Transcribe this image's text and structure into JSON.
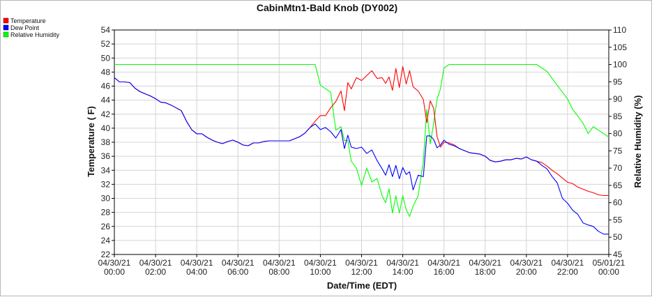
{
  "chart_data": {
    "type": "line",
    "title": "CabinMtn1-Bald Knob (DY002)",
    "xlabel": "Date/Time (EDT)",
    "ylabel": "Temperature ( F)",
    "y2label": "Relative Humidity (%)",
    "xlim": [
      "04/30/21 00:00",
      "05/01/21 00:00"
    ],
    "ylim": [
      22,
      54
    ],
    "y2lim": [
      45,
      110
    ],
    "grid": true,
    "legend_position": "top-left",
    "x_ticks": [
      "04/30/21 00:00",
      "04/30/21 02:00",
      "04/30/21 04:00",
      "04/30/21 06:00",
      "04/30/21 08:00",
      "04/30/21 10:00",
      "04/30/21 12:00",
      "04/30/21 14:00",
      "04/30/21 16:00",
      "04/30/21 18:00",
      "04/30/21 20:00",
      "04/30/21 22:00",
      "05/01/21 00:00"
    ],
    "y_ticks": [
      22,
      24,
      26,
      28,
      30,
      32,
      34,
      36,
      38,
      40,
      42,
      44,
      46,
      48,
      50,
      52,
      54
    ],
    "y2_ticks": [
      45,
      50,
      55,
      60,
      65,
      70,
      75,
      80,
      85,
      90,
      95,
      100,
      105,
      110
    ],
    "series": [
      {
        "name": "Temperature",
        "color": "#ff0000",
        "axis": "left",
        "x": [
          "04/30/21 00:00",
          "04/30/21 00:15",
          "04/30/21 00:30",
          "04/30/21 00:45",
          "04/30/21 01:00",
          "04/30/21 01:15",
          "04/30/21 01:30",
          "04/30/21 01:45",
          "04/30/21 02:00",
          "04/30/21 02:15",
          "04/30/21 02:30",
          "04/30/21 02:45",
          "04/30/21 03:00",
          "04/30/21 03:15",
          "04/30/21 03:30",
          "04/30/21 03:45",
          "04/30/21 04:00",
          "04/30/21 04:15",
          "04/30/21 04:30",
          "04/30/21 04:45",
          "04/30/21 05:00",
          "04/30/21 05:15",
          "04/30/21 05:30",
          "04/30/21 05:45",
          "04/30/21 06:00",
          "04/30/21 06:15",
          "04/30/21 06:30",
          "04/30/21 06:45",
          "04/30/21 07:00",
          "04/30/21 07:15",
          "04/30/21 07:30",
          "04/30/21 07:45",
          "04/30/21 08:00",
          "04/30/21 08:15",
          "04/30/21 08:30",
          "04/30/21 08:45",
          "04/30/21 09:00",
          "04/30/21 09:15",
          "04/30/21 09:30",
          "04/30/21 09:45",
          "04/30/21 10:00",
          "04/30/21 10:15",
          "04/30/21 10:30",
          "04/30/21 10:45",
          "04/30/21 11:00",
          "04/30/21 11:10",
          "04/30/21 11:20",
          "04/30/21 11:30",
          "04/30/21 11:45",
          "04/30/21 12:00",
          "04/30/21 12:15",
          "04/30/21 12:30",
          "04/30/21 12:45",
          "04/30/21 13:00",
          "04/30/21 13:10",
          "04/30/21 13:20",
          "04/30/21 13:30",
          "04/30/21 13:40",
          "04/30/21 13:50",
          "04/30/21 14:00",
          "04/30/21 14:10",
          "04/30/21 14:20",
          "04/30/21 14:30",
          "04/30/21 14:45",
          "04/30/21 15:00",
          "04/30/21 15:10",
          "04/30/21 15:20",
          "04/30/21 15:30",
          "04/30/21 15:40",
          "04/30/21 15:50",
          "04/30/21 16:00",
          "04/30/21 16:15",
          "04/30/21 16:30",
          "04/30/21 16:45",
          "04/30/21 17:00",
          "04/30/21 17:15",
          "04/30/21 17:30",
          "04/30/21 17:45",
          "04/30/21 18:00",
          "04/30/21 18:15",
          "04/30/21 18:30",
          "04/30/21 18:45",
          "04/30/21 19:00",
          "04/30/21 19:15",
          "04/30/21 19:30",
          "04/30/21 19:45",
          "04/30/21 20:00",
          "04/30/21 20:15",
          "04/30/21 20:30",
          "04/30/21 20:45",
          "04/30/21 21:00",
          "04/30/21 21:15",
          "04/30/21 21:30",
          "04/30/21 21:45",
          "04/30/21 22:00",
          "04/30/21 22:15",
          "04/30/21 22:30",
          "04/30/21 22:45",
          "04/30/21 23:00",
          "04/30/21 23:15",
          "04/30/21 23:30",
          "04/30/21 23:45",
          "05/01/21 00:00"
        ],
        "values": [
          47.2,
          46.6,
          46.6,
          46.5,
          45.7,
          45.2,
          44.9,
          44.6,
          44.2,
          43.7,
          43.6,
          43.3,
          42.9,
          42.5,
          41.0,
          39.8,
          39.2,
          39.2,
          38.7,
          38.3,
          38.0,
          37.8,
          38.1,
          38.3,
          38.0,
          37.6,
          37.5,
          37.9,
          37.9,
          38.1,
          38.2,
          38.2,
          38.2,
          38.2,
          38.2,
          38.5,
          38.8,
          39.3,
          40.1,
          41.0,
          41.8,
          41.8,
          42.9,
          43.8,
          45.3,
          42.5,
          46.5,
          45.6,
          47.2,
          46.8,
          47.5,
          48.2,
          47.1,
          47.2,
          46.4,
          47.3,
          45.4,
          48.5,
          45.8,
          48.8,
          46.3,
          48.2,
          45.9,
          45.3,
          44.1,
          40.8,
          43.9,
          42.8,
          38.8,
          37.3,
          38.0,
          37.9,
          37.6,
          37.1,
          36.8,
          36.5,
          36.4,
          36.3,
          36.0,
          35.4,
          35.2,
          35.3,
          35.5,
          35.5,
          35.7,
          35.6,
          35.9,
          35.5,
          35.3,
          35.1,
          34.6,
          34.0,
          33.5,
          32.9,
          32.3,
          32.1,
          31.6,
          31.3,
          31.0,
          30.8,
          30.5,
          30.4,
          30.4
        ]
      },
      {
        "name": "Dew Point",
        "color": "#0000ff",
        "axis": "left",
        "x": [
          "04/30/21 00:00",
          "04/30/21 00:15",
          "04/30/21 00:30",
          "04/30/21 00:45",
          "04/30/21 01:00",
          "04/30/21 01:15",
          "04/30/21 01:30",
          "04/30/21 01:45",
          "04/30/21 02:00",
          "04/30/21 02:15",
          "04/30/21 02:30",
          "04/30/21 02:45",
          "04/30/21 03:00",
          "04/30/21 03:15",
          "04/30/21 03:30",
          "04/30/21 03:45",
          "04/30/21 04:00",
          "04/30/21 04:15",
          "04/30/21 04:30",
          "04/30/21 04:45",
          "04/30/21 05:00",
          "04/30/21 05:15",
          "04/30/21 05:30",
          "04/30/21 05:45",
          "04/30/21 06:00",
          "04/30/21 06:15",
          "04/30/21 06:30",
          "04/30/21 06:45",
          "04/30/21 07:00",
          "04/30/21 07:15",
          "04/30/21 07:30",
          "04/30/21 07:45",
          "04/30/21 08:00",
          "04/30/21 08:15",
          "04/30/21 08:30",
          "04/30/21 08:45",
          "04/30/21 09:00",
          "04/30/21 09:15",
          "04/30/21 09:30",
          "04/30/21 09:45",
          "04/30/21 10:00",
          "04/30/21 10:15",
          "04/30/21 10:30",
          "04/30/21 10:45",
          "04/30/21 11:00",
          "04/30/21 11:10",
          "04/30/21 11:20",
          "04/30/21 11:30",
          "04/30/21 11:45",
          "04/30/21 12:00",
          "04/30/21 12:15",
          "04/30/21 12:30",
          "04/30/21 12:45",
          "04/30/21 13:00",
          "04/30/21 13:10",
          "04/30/21 13:20",
          "04/30/21 13:30",
          "04/30/21 13:40",
          "04/30/21 13:50",
          "04/30/21 14:00",
          "04/30/21 14:10",
          "04/30/21 14:20",
          "04/30/21 14:30",
          "04/30/21 14:45",
          "04/30/21 15:00",
          "04/30/21 15:10",
          "04/30/21 15:20",
          "04/30/21 15:30",
          "04/30/21 15:40",
          "04/30/21 15:50",
          "04/30/21 16:00",
          "04/30/21 16:15",
          "04/30/21 16:30",
          "04/30/21 16:45",
          "04/30/21 17:00",
          "04/30/21 17:15",
          "04/30/21 17:30",
          "04/30/21 17:45",
          "04/30/21 18:00",
          "04/30/21 18:15",
          "04/30/21 18:30",
          "04/30/21 18:45",
          "04/30/21 19:00",
          "04/30/21 19:15",
          "04/30/21 19:30",
          "04/30/21 19:45",
          "04/30/21 20:00",
          "04/30/21 20:15",
          "04/30/21 20:30",
          "04/30/21 20:45",
          "04/30/21 21:00",
          "04/30/21 21:15",
          "04/30/21 21:30",
          "04/30/21 21:45",
          "04/30/21 22:00",
          "04/30/21 22:15",
          "04/30/21 22:30",
          "04/30/21 22:45",
          "04/30/21 23:00",
          "04/30/21 23:15",
          "04/30/21 23:30",
          "04/30/21 23:45",
          "05/01/21 00:00"
        ],
        "values": [
          47.2,
          46.6,
          46.6,
          46.5,
          45.7,
          45.2,
          44.9,
          44.6,
          44.2,
          43.7,
          43.6,
          43.3,
          42.9,
          42.5,
          41.0,
          39.8,
          39.2,
          39.2,
          38.7,
          38.3,
          38.0,
          37.8,
          38.1,
          38.3,
          38.0,
          37.6,
          37.5,
          37.9,
          37.9,
          38.1,
          38.2,
          38.2,
          38.2,
          38.2,
          38.2,
          38.5,
          38.8,
          39.3,
          40.1,
          40.6,
          39.8,
          40.1,
          39.5,
          38.6,
          39.8,
          37.1,
          39.0,
          37.3,
          37.1,
          37.3,
          36.4,
          36.9,
          35.4,
          34.2,
          33.3,
          34.8,
          33.1,
          34.7,
          32.8,
          34.4,
          33.4,
          33.8,
          31.2,
          33.3,
          33.1,
          38.9,
          38.9,
          38.4,
          37.2,
          37.6,
          38.3,
          37.7,
          37.5,
          37.1,
          36.8,
          36.5,
          36.4,
          36.3,
          36.0,
          35.4,
          35.2,
          35.3,
          35.5,
          35.5,
          35.7,
          35.6,
          35.9,
          35.5,
          35.3,
          34.7,
          34.2,
          33.1,
          32.2,
          30.0,
          29.3,
          28.3,
          27.7,
          26.5,
          26.2,
          26.0,
          25.3,
          24.9,
          24.9
        ]
      },
      {
        "name": "Relative Humidity",
        "color": "#00ff00",
        "axis": "right",
        "x": [
          "04/30/21 00:00",
          "04/30/21 01:00",
          "04/30/21 02:00",
          "04/30/21 03:00",
          "04/30/21 04:00",
          "04/30/21 05:00",
          "04/30/21 06:00",
          "04/30/21 07:00",
          "04/30/21 08:00",
          "04/30/21 09:00",
          "04/30/21 09:45",
          "04/30/21 10:00",
          "04/30/21 10:15",
          "04/30/21 10:30",
          "04/30/21 10:45",
          "04/30/21 11:00",
          "04/30/21 11:10",
          "04/30/21 11:20",
          "04/30/21 11:30",
          "04/30/21 11:45",
          "04/30/21 12:00",
          "04/30/21 12:15",
          "04/30/21 12:30",
          "04/30/21 12:45",
          "04/30/21 13:00",
          "04/30/21 13:10",
          "04/30/21 13:20",
          "04/30/21 13:30",
          "04/30/21 13:40",
          "04/30/21 13:50",
          "04/30/21 14:00",
          "04/30/21 14:10",
          "04/30/21 14:20",
          "04/30/21 14:30",
          "04/30/21 14:45",
          "04/30/21 15:00",
          "04/30/21 15:10",
          "04/30/21 15:20",
          "04/30/21 15:30",
          "04/30/21 15:40",
          "04/30/21 15:50",
          "04/30/21 16:00",
          "04/30/21 16:15",
          "04/30/21 16:30",
          "04/30/21 16:45",
          "04/30/21 17:00",
          "04/30/21 18:00",
          "04/30/21 19:00",
          "04/30/21 19:30",
          "04/30/21 20:00",
          "04/30/21 20:30",
          "04/30/21 20:45",
          "04/30/21 21:00",
          "04/30/21 21:15",
          "04/30/21 21:30",
          "04/30/21 21:45",
          "04/30/21 22:00",
          "04/30/21 22:15",
          "04/30/21 22:30",
          "04/30/21 22:45",
          "04/30/21 23:00",
          "04/30/21 23:15",
          "04/30/21 23:30",
          "04/30/21 23:45",
          "05/01/21 00:00"
        ],
        "values": [
          100,
          100,
          100,
          100,
          100,
          100,
          100,
          100,
          100,
          100,
          100,
          94,
          93,
          92,
          81,
          82,
          78,
          78,
          72,
          70,
          65,
          70,
          66,
          67,
          62,
          60,
          64,
          57,
          62,
          57,
          62,
          58,
          56,
          59,
          62,
          72,
          87,
          77,
          83,
          90,
          93,
          99,
          100,
          100,
          100,
          100,
          100,
          100,
          100,
          100,
          100,
          99,
          98,
          96,
          94,
          92,
          90,
          87,
          85,
          83,
          80,
          82,
          81,
          80,
          79
        ]
      }
    ]
  }
}
